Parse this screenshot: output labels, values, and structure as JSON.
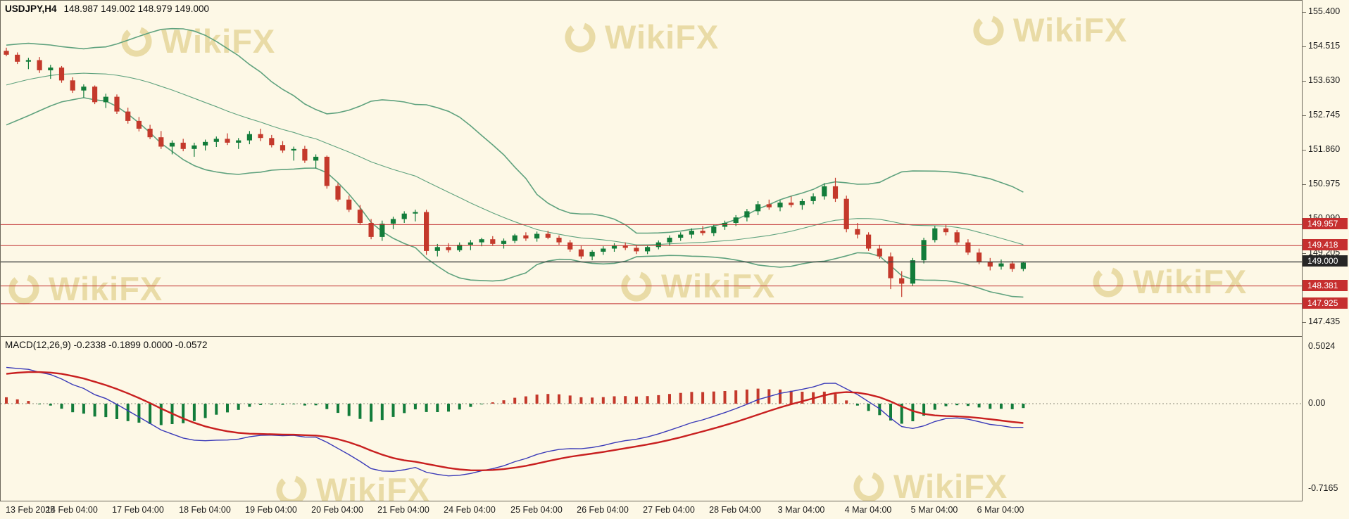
{
  "header": {
    "symbol": "USDJPY,H4",
    "ohlc": "148.987 149.002 148.979 149.000"
  },
  "macd_panel": {
    "label": "MACD(12,26,9)",
    "values": "-0.2338 -0.1899 0.0000 -0.0572",
    "axis_top": "0.5024",
    "axis_zero": "0.00",
    "axis_bottom": "-0.7165"
  },
  "watermark": {
    "text": "WikiFX"
  },
  "price_axis": {
    "badges": [
      {
        "label": "149.957",
        "price": 149.957,
        "color": "#c62f2f"
      },
      {
        "label": "149.418",
        "price": 149.418,
        "color": "#c62f2f"
      },
      {
        "label": "148.381",
        "price": 148.381,
        "color": "#c62f2f"
      },
      {
        "label": "147.925",
        "price": 147.925,
        "color": "#c62f2f"
      },
      {
        "label": "149.000",
        "price": 149.0,
        "color": "#262626"
      }
    ]
  },
  "chart_data": {
    "type": "candlestick",
    "symbol": "USDJPY",
    "timeframe": "H4",
    "current_bar": {
      "open": 148.987,
      "high": 149.002,
      "low": 148.979,
      "close": 149.0
    },
    "y_ticks": [
      155.4,
      154.515,
      153.63,
      152.745,
      151.86,
      150.975,
      150.09,
      149.205,
      148.32,
      147.435
    ],
    "x_labels": [
      "13 Feb 2025",
      "14 Feb 04:00",
      "17 Feb 04:00",
      "18 Feb 04:00",
      "19 Feb 04:00",
      "20 Feb 04:00",
      "21 Feb 04:00",
      "24 Feb 04:00",
      "25 Feb 04:00",
      "26 Feb 04:00",
      "27 Feb 04:00",
      "28 Feb 04:00",
      "3 Mar 04:00",
      "4 Mar 04:00",
      "5 Mar 04:00",
      "6 Mar 04:00"
    ],
    "bars_per_label": 6,
    "horizontal_lines": [
      {
        "price": 149.957,
        "color": "#c13030",
        "width": 1
      },
      {
        "price": 149.418,
        "color": "#c13030",
        "width": 1
      },
      {
        "price": 148.381,
        "color": "#c13030",
        "width": 1
      },
      {
        "price": 147.925,
        "color": "#c13030",
        "width": 1
      },
      {
        "price": 149.0,
        "color": "#3c3c3c",
        "width": 1.4
      }
    ],
    "bollinger": {
      "period": 20,
      "deviation": 2,
      "color": "#5fa27e"
    },
    "macd": {
      "fast": 12,
      "slow": 26,
      "signal": 9,
      "display_values": "-0.2338 -0.1899 0.0000 -0.0572",
      "range": [
        -0.7165,
        0.5024
      ]
    },
    "candles": [
      [
        154.42,
        154.5,
        154.28,
        154.32
      ],
      [
        154.32,
        154.38,
        154.08,
        154.14
      ],
      [
        154.14,
        154.24,
        153.95,
        154.18
      ],
      [
        154.18,
        154.26,
        153.85,
        153.92
      ],
      [
        153.92,
        154.06,
        153.7,
        153.99
      ],
      [
        153.99,
        154.03,
        153.6,
        153.66
      ],
      [
        153.66,
        153.74,
        153.34,
        153.4
      ],
      [
        153.4,
        153.56,
        153.22,
        153.5
      ],
      [
        153.5,
        153.53,
        153.05,
        153.1
      ],
      [
        153.1,
        153.32,
        152.95,
        153.24
      ],
      [
        153.24,
        153.3,
        152.8,
        152.86
      ],
      [
        152.86,
        152.96,
        152.55,
        152.62
      ],
      [
        152.62,
        152.72,
        152.35,
        152.42
      ],
      [
        152.42,
        152.52,
        152.15,
        152.2
      ],
      [
        152.2,
        152.36,
        151.9,
        151.96
      ],
      [
        151.96,
        152.12,
        151.76,
        152.06
      ],
      [
        152.06,
        152.16,
        151.84,
        151.9
      ],
      [
        151.9,
        152.06,
        151.7,
        151.99
      ],
      [
        151.99,
        152.14,
        151.86,
        152.08
      ],
      [
        152.08,
        152.22,
        151.95,
        152.16
      ],
      [
        152.16,
        152.3,
        152.0,
        152.06
      ],
      [
        152.06,
        152.18,
        151.9,
        152.12
      ],
      [
        152.12,
        152.36,
        152.02,
        152.28
      ],
      [
        152.28,
        152.42,
        152.1,
        152.18
      ],
      [
        152.18,
        152.26,
        151.94,
        152.0
      ],
      [
        152.0,
        152.1,
        151.8,
        151.86
      ],
      [
        151.86,
        151.96,
        151.6,
        151.9
      ],
      [
        151.9,
        151.98,
        151.54,
        151.6
      ],
      [
        151.6,
        151.76,
        151.4,
        151.7
      ],
      [
        151.7,
        151.73,
        150.88,
        150.95
      ],
      [
        150.95,
        151.02,
        150.55,
        150.6
      ],
      [
        150.6,
        150.7,
        150.28,
        150.34
      ],
      [
        150.34,
        150.46,
        149.95,
        150.0
      ],
      [
        150.0,
        150.1,
        149.58,
        149.64
      ],
      [
        149.64,
        150.06,
        149.54,
        149.98
      ],
      [
        149.98,
        150.16,
        149.84,
        150.1
      ],
      [
        150.1,
        150.3,
        150.0,
        150.24
      ],
      [
        150.24,
        150.34,
        150.04,
        150.28
      ],
      [
        150.28,
        150.34,
        149.18,
        149.28
      ],
      [
        149.28,
        149.46,
        149.14,
        149.38
      ],
      [
        149.38,
        149.48,
        149.24,
        149.3
      ],
      [
        149.3,
        149.5,
        149.26,
        149.44
      ],
      [
        149.44,
        149.56,
        149.3,
        149.5
      ],
      [
        149.5,
        149.62,
        149.4,
        149.58
      ],
      [
        149.58,
        149.66,
        149.42,
        149.46
      ],
      [
        149.46,
        149.6,
        149.34,
        149.54
      ],
      [
        149.54,
        149.72,
        149.48,
        149.68
      ],
      [
        149.68,
        149.76,
        149.54,
        149.6
      ],
      [
        149.6,
        149.78,
        149.52,
        149.72
      ],
      [
        149.72,
        149.8,
        149.58,
        149.62
      ],
      [
        149.62,
        149.68,
        149.44,
        149.5
      ],
      [
        149.5,
        149.56,
        149.26,
        149.32
      ],
      [
        149.32,
        149.42,
        149.08,
        149.14
      ],
      [
        149.14,
        149.3,
        149.04,
        149.26
      ],
      [
        149.26,
        149.4,
        149.18,
        149.34
      ],
      [
        149.34,
        149.48,
        149.26,
        149.42
      ],
      [
        149.42,
        149.5,
        149.3,
        149.36
      ],
      [
        149.36,
        149.44,
        149.2,
        149.27
      ],
      [
        149.27,
        149.42,
        149.2,
        149.38
      ],
      [
        149.38,
        149.55,
        149.32,
        149.5
      ],
      [
        149.5,
        149.68,
        149.42,
        149.62
      ],
      [
        149.62,
        149.76,
        149.54,
        149.7
      ],
      [
        149.7,
        149.86,
        149.6,
        149.8
      ],
      [
        149.8,
        149.92,
        149.68,
        149.74
      ],
      [
        149.74,
        149.96,
        149.66,
        149.9
      ],
      [
        149.9,
        150.06,
        149.82,
        150.0
      ],
      [
        150.0,
        150.2,
        149.92,
        150.14
      ],
      [
        150.14,
        150.36,
        150.04,
        150.3
      ],
      [
        150.3,
        150.56,
        150.2,
        150.48
      ],
      [
        150.48,
        150.6,
        150.34,
        150.4
      ],
      [
        150.4,
        150.58,
        150.3,
        150.52
      ],
      [
        150.52,
        150.68,
        150.4,
        150.46
      ],
      [
        150.46,
        150.62,
        150.34,
        150.56
      ],
      [
        150.56,
        150.76,
        150.48,
        150.68
      ],
      [
        150.68,
        151.02,
        150.6,
        150.94
      ],
      [
        150.94,
        151.16,
        150.54,
        150.62
      ],
      [
        150.62,
        150.7,
        149.76,
        149.84
      ],
      [
        149.84,
        150.0,
        149.6,
        149.7
      ],
      [
        149.7,
        149.76,
        149.28,
        149.34
      ],
      [
        149.34,
        149.44,
        149.08,
        149.14
      ],
      [
        149.14,
        149.24,
        148.3,
        148.58
      ],
      [
        148.58,
        148.76,
        148.1,
        148.44
      ],
      [
        148.44,
        149.1,
        148.38,
        149.04
      ],
      [
        149.04,
        149.62,
        148.96,
        149.56
      ],
      [
        149.56,
        149.92,
        149.5,
        149.86
      ],
      [
        149.86,
        149.96,
        149.68,
        149.76
      ],
      [
        149.76,
        149.82,
        149.44,
        149.5
      ],
      [
        149.5,
        149.58,
        149.18,
        149.24
      ],
      [
        149.24,
        149.34,
        148.94,
        149.0
      ],
      [
        149.0,
        149.1,
        148.78,
        148.88
      ],
      [
        148.88,
        149.06,
        148.8,
        148.96
      ],
      [
        148.96,
        149.02,
        148.74,
        148.82
      ],
      [
        148.82,
        149.0,
        148.76,
        148.98
      ]
    ]
  }
}
